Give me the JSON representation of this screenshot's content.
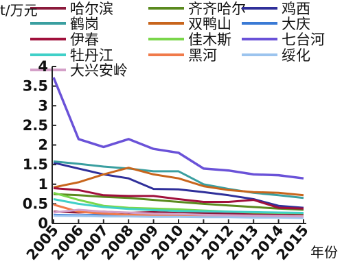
{
  "chart_data": {
    "type": "line",
    "title": "",
    "ylabel": "t/万元",
    "xlabel": "年份",
    "x": [
      2005,
      2006,
      2007,
      2008,
      2009,
      2010,
      2011,
      2012,
      2013,
      2014,
      2015
    ],
    "ylim": [
      0,
      4
    ],
    "yticks": [
      "0",
      "0.5",
      "1",
      "1.5",
      "2",
      "2.5",
      "3",
      "3.5",
      "4"
    ],
    "grid": false,
    "legend_position": "top",
    "series": [
      {
        "name": "哈尔滨",
        "color": "#8b1a3c",
        "values": [
          0.3,
          0.28,
          0.3,
          0.27,
          0.29,
          0.27,
          0.26,
          0.25,
          0.24,
          0.24,
          0.23
        ]
      },
      {
        "name": "齐齐哈尔",
        "color": "#5a8a1e",
        "values": [
          0.75,
          0.72,
          0.68,
          0.65,
          0.6,
          0.55,
          0.5,
          0.46,
          0.42,
          0.38,
          0.35
        ]
      },
      {
        "name": "鸡西",
        "color": "#2f2f9a",
        "values": [
          1.55,
          1.4,
          1.25,
          1.15,
          0.88,
          0.87,
          0.8,
          0.72,
          0.62,
          0.45,
          0.4
        ]
      },
      {
        "name": "鹤岗",
        "color": "#3a9fa0",
        "values": [
          1.58,
          1.52,
          1.45,
          1.4,
          1.33,
          1.33,
          1.0,
          0.88,
          0.78,
          0.72,
          0.65
        ]
      },
      {
        "name": "双鸭山",
        "color": "#c8651c",
        "values": [
          0.92,
          1.05,
          1.25,
          1.42,
          1.25,
          1.15,
          0.95,
          0.85,
          0.8,
          0.78,
          0.72
        ]
      },
      {
        "name": "大庆",
        "color": "#3a7ad5",
        "values": [
          0.22,
          0.21,
          0.22,
          0.21,
          0.2,
          0.2,
          0.19,
          0.18,
          0.18,
          0.17,
          0.17
        ]
      },
      {
        "name": "伊春",
        "color": "#a0103c",
        "values": [
          0.9,
          0.85,
          0.72,
          0.7,
          0.7,
          0.62,
          0.55,
          0.55,
          0.6,
          0.4,
          0.38
        ]
      },
      {
        "name": "佳木斯",
        "color": "#7ad64a",
        "values": [
          0.78,
          0.6,
          0.45,
          0.4,
          0.38,
          0.36,
          0.33,
          0.3,
          0.28,
          0.27,
          0.26
        ]
      },
      {
        "name": "七台河",
        "color": "#6a52d8",
        "values": [
          3.72,
          2.15,
          1.95,
          2.15,
          1.9,
          1.8,
          1.4,
          1.35,
          1.25,
          1.23,
          1.15
        ]
      },
      {
        "name": "牡丹江",
        "color": "#40d0c8",
        "values": [
          0.62,
          0.5,
          0.42,
          0.37,
          0.34,
          0.32,
          0.31,
          0.3,
          0.29,
          0.28,
          0.27
        ]
      },
      {
        "name": "黑河",
        "color": "#f07a4a",
        "values": [
          0.48,
          0.3,
          0.25,
          0.22,
          0.21,
          0.2,
          0.19,
          0.18,
          0.17,
          0.16,
          0.15
        ]
      },
      {
        "name": "绥化",
        "color": "#9cc4ee",
        "values": [
          0.2,
          0.19,
          0.18,
          0.18,
          0.17,
          0.17,
          0.16,
          0.16,
          0.15,
          0.15,
          0.14
        ]
      },
      {
        "name": "大兴安岭",
        "color": "#d4a0c8",
        "values": [
          0.28,
          0.35,
          0.3,
          0.28,
          0.25,
          0.24,
          0.22,
          0.21,
          0.2,
          0.19,
          0.18
        ]
      }
    ]
  }
}
